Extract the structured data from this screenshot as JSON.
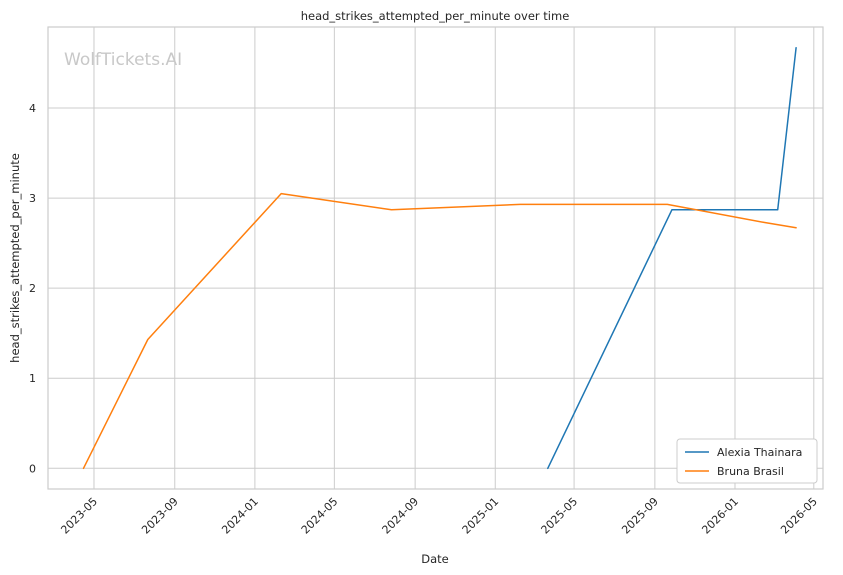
{
  "chart_data": {
    "type": "line",
    "title": "head_strikes_attempted_per_minute over time",
    "xlabel": "Date",
    "ylabel": "head_strikes_attempted_per_minute",
    "watermark": "WolfTickets.AI",
    "x_tick_labels": [
      "2023-05",
      "2023-09",
      "2024-01",
      "2024-05",
      "2024-09",
      "2025-01",
      "2025-05",
      "2025-09",
      "2026-01",
      "2026-05"
    ],
    "y_ticks": [
      0,
      1,
      2,
      3,
      4
    ],
    "xlim": [
      "2023-02-20",
      "2026-05-15"
    ],
    "ylim": [
      -0.23,
      4.9
    ],
    "grid": true,
    "legend_position": "lower-right",
    "series": [
      {
        "name": "Alexia Thainara",
        "color": "#1f77b4",
        "x": [
          "2025-03-22",
          "2025-09-27",
          "2026-03-07",
          "2026-04-04"
        ],
        "y": [
          0,
          2.87,
          2.87,
          4.67
        ]
      },
      {
        "name": "Bruna Brasil",
        "color": "#ff7f0e",
        "x": [
          "2023-04-15",
          "2023-07-22",
          "2024-02-10",
          "2024-07-27",
          "2025-02-08",
          "2025-09-20",
          "2026-02-14",
          "2026-04-04"
        ],
        "y": [
          0,
          1.43,
          3.05,
          2.87,
          2.93,
          2.93,
          2.73,
          2.67
        ]
      }
    ]
  }
}
